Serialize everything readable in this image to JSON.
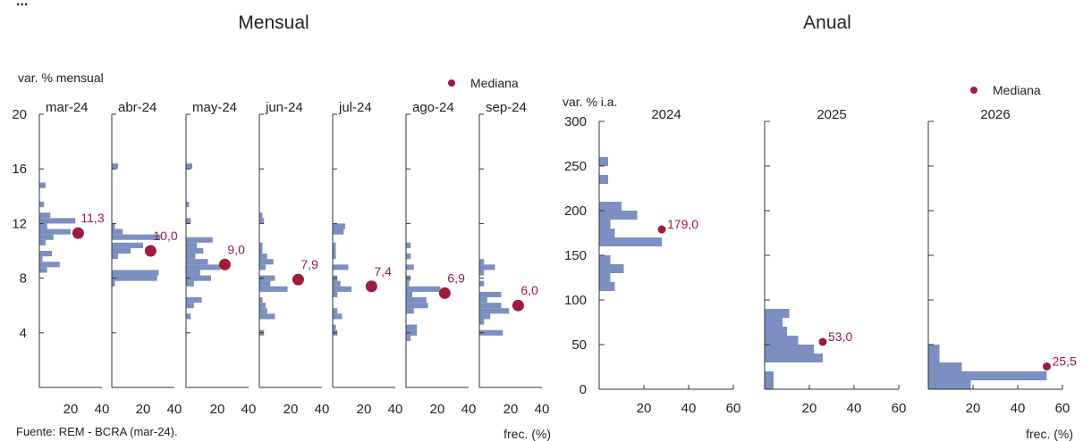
{
  "header": {
    "monthly_title": "Mensual",
    "annual_title": "Anual",
    "clipped_text": "..."
  },
  "source": "Fuente: REM - BCRA (mar-24).",
  "colors": {
    "bar": "#7b8fc0",
    "median": "#9e1b3a",
    "axis": "#333333"
  },
  "chart_data": [
    {
      "type": "bar",
      "orientation": "horizontal",
      "title": "Mensual",
      "ylabel": "var. % mensual",
      "xlabel": "frec. (%)",
      "legend": {
        "label": "Mediana",
        "position": "top-right"
      },
      "ylim": [
        0,
        20
      ],
      "yticks": [
        4,
        8,
        12,
        16,
        20
      ],
      "xlim": [
        0,
        40
      ],
      "xticks": [
        20,
        40
      ],
      "bin_width": 0.4,
      "panels": [
        {
          "label": "mar-24",
          "median": 11.3,
          "median_label": "11,3",
          "bins": [
            [
              8.6,
              5
            ],
            [
              9.0,
              13
            ],
            [
              9.4,
              2
            ],
            [
              9.8,
              8
            ],
            [
              10.6,
              4
            ],
            [
              11.0,
              9
            ],
            [
              11.4,
              20
            ],
            [
              11.8,
              5
            ],
            [
              12.2,
              23
            ],
            [
              12.6,
              7
            ],
            [
              13.4,
              3
            ],
            [
              14.8,
              4
            ]
          ]
        },
        {
          "label": "abr-24",
          "median": 10.0,
          "median_label": "10,0",
          "bins": [
            [
              7.6,
              2
            ],
            [
              8.0,
              29
            ],
            [
              8.4,
              30
            ],
            [
              9.6,
              4
            ],
            [
              10.0,
              12
            ],
            [
              10.4,
              20
            ],
            [
              11.0,
              31
            ],
            [
              11.4,
              7
            ],
            [
              11.8,
              2
            ],
            [
              16.2,
              4
            ]
          ]
        },
        {
          "label": "may-24",
          "median": 9.0,
          "median_label": "9,0",
          "bins": [
            [
              5.2,
              3
            ],
            [
              6.0,
              5
            ],
            [
              6.4,
              10
            ],
            [
              7.6,
              5
            ],
            [
              8.0,
              16
            ],
            [
              8.4,
              9
            ],
            [
              8.8,
              22
            ],
            [
              9.2,
              14
            ],
            [
              9.6,
              6
            ],
            [
              10.0,
              11
            ],
            [
              10.4,
              7
            ],
            [
              10.8,
              17
            ],
            [
              12.2,
              3
            ],
            [
              13.4,
              2
            ],
            [
              16.2,
              4
            ]
          ]
        },
        {
          "label": "jun-24",
          "median": 7.9,
          "median_label": "7,9",
          "bins": [
            [
              4.0,
              3
            ],
            [
              5.2,
              10
            ],
            [
              5.6,
              5
            ],
            [
              6.0,
              4
            ],
            [
              6.4,
              2
            ],
            [
              7.2,
              18
            ],
            [
              7.6,
              7
            ],
            [
              8.0,
              10
            ],
            [
              8.8,
              4
            ],
            [
              9.2,
              9
            ],
            [
              9.6,
              5
            ],
            [
              10.0,
              2
            ],
            [
              10.4,
              2
            ],
            [
              12.2,
              3
            ],
            [
              12.6,
              2
            ]
          ]
        },
        {
          "label": "jul-24",
          "median": 7.4,
          "median_label": "7,4",
          "bins": [
            [
              4.0,
              3
            ],
            [
              4.4,
              2
            ],
            [
              5.2,
              6
            ],
            [
              5.6,
              3
            ],
            [
              6.8,
              3
            ],
            [
              7.2,
              12
            ],
            [
              7.6,
              5
            ],
            [
              8.0,
              3
            ],
            [
              8.8,
              10
            ],
            [
              9.6,
              2
            ],
            [
              10.0,
              2
            ],
            [
              10.4,
              2
            ],
            [
              11.4,
              7
            ],
            [
              11.8,
              8
            ]
          ]
        },
        {
          "label": "ago-24",
          "median": 6.9,
          "median_label": "6,9",
          "bins": [
            [
              3.6,
              3
            ],
            [
              4.0,
              7
            ],
            [
              4.4,
              7
            ],
            [
              5.6,
              5
            ],
            [
              6.0,
              14
            ],
            [
              6.4,
              13
            ],
            [
              6.8,
              4
            ],
            [
              7.2,
              22
            ],
            [
              7.6,
              2
            ],
            [
              8.0,
              3
            ],
            [
              8.8,
              5
            ],
            [
              9.6,
              3
            ],
            [
              10.4,
              3
            ]
          ]
        },
        {
          "label": "sep-24",
          "median": 6.0,
          "median_label": "6,0",
          "bins": [
            [
              4.0,
              15
            ],
            [
              4.8,
              3
            ],
            [
              5.2,
              7
            ],
            [
              5.6,
              19
            ],
            [
              6.0,
              14
            ],
            [
              6.4,
              5
            ],
            [
              6.8,
              14
            ],
            [
              7.6,
              3
            ],
            [
              8.4,
              3
            ],
            [
              8.8,
              10
            ],
            [
              9.2,
              3
            ]
          ]
        }
      ]
    },
    {
      "type": "bar",
      "orientation": "horizontal",
      "title": "Anual",
      "ylabel": "var. % i.a.",
      "xlabel": "frec. (%)",
      "legend": {
        "label": "Mediana",
        "position": "top-right"
      },
      "ylim": [
        0,
        300
      ],
      "yticks": [
        0,
        50,
        100,
        150,
        200,
        250,
        300
      ],
      "xlim": [
        0,
        60
      ],
      "xticks": [
        20,
        40,
        60
      ],
      "bin_width": 10,
      "panels": [
        {
          "label": "2024",
          "median": 179.0,
          "median_label": "179,0",
          "bins": [
            [
              115,
              7
            ],
            [
              125,
              5
            ],
            [
              135,
              11
            ],
            [
              145,
              5
            ],
            [
              165,
              28
            ],
            [
              175,
              7
            ],
            [
              185,
              5
            ],
            [
              195,
              17
            ],
            [
              205,
              10
            ],
            [
              235,
              4
            ],
            [
              255,
              4
            ]
          ]
        },
        {
          "label": "2025",
          "median": 53.0,
          "median_label": "53,0",
          "bins": [
            [
              5,
              4
            ],
            [
              15,
              4
            ],
            [
              35,
              26
            ],
            [
              45,
              22
            ],
            [
              55,
              15
            ],
            [
              65,
              10
            ],
            [
              75,
              8
            ],
            [
              85,
              11
            ]
          ]
        },
        {
          "label": "2026",
          "median": 25.5,
          "median_label": "25,5",
          "bins": [
            [
              5,
              19
            ],
            [
              15,
              53
            ],
            [
              25,
              15
            ],
            [
              35,
              5
            ],
            [
              45,
              5
            ]
          ]
        }
      ]
    }
  ]
}
